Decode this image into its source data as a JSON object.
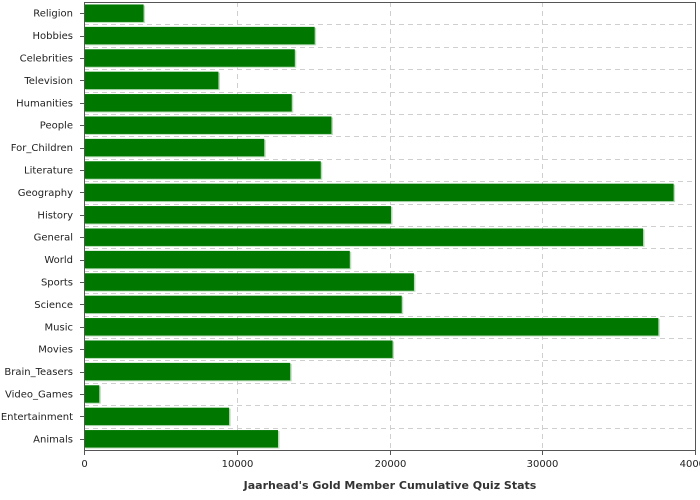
{
  "chart_data": {
    "type": "bar",
    "orientation": "horizontal",
    "xlabel": "Jaarhead's Gold Member Cumulative Quiz Stats",
    "ylabel": "",
    "xlim": [
      0,
      40000
    ],
    "xticks": [
      0,
      10000,
      20000,
      30000,
      40000
    ],
    "grid": true,
    "bar_color": "#007800",
    "categories": [
      "Religion",
      "Hobbies",
      "Celebrities",
      "Television",
      "Humanities",
      "People",
      "For_Children",
      "Literature",
      "Geography",
      "History",
      "General",
      "World",
      "Sports",
      "Science",
      "Music",
      "Movies",
      "Brain_Teasers",
      "Video_Games",
      "Entertainment",
      "Animals"
    ],
    "values": [
      3900,
      15100,
      13800,
      8800,
      13600,
      16200,
      11800,
      15500,
      38600,
      20100,
      36600,
      17400,
      21600,
      20800,
      37600,
      20200,
      13500,
      1000,
      9500,
      12700
    ]
  }
}
